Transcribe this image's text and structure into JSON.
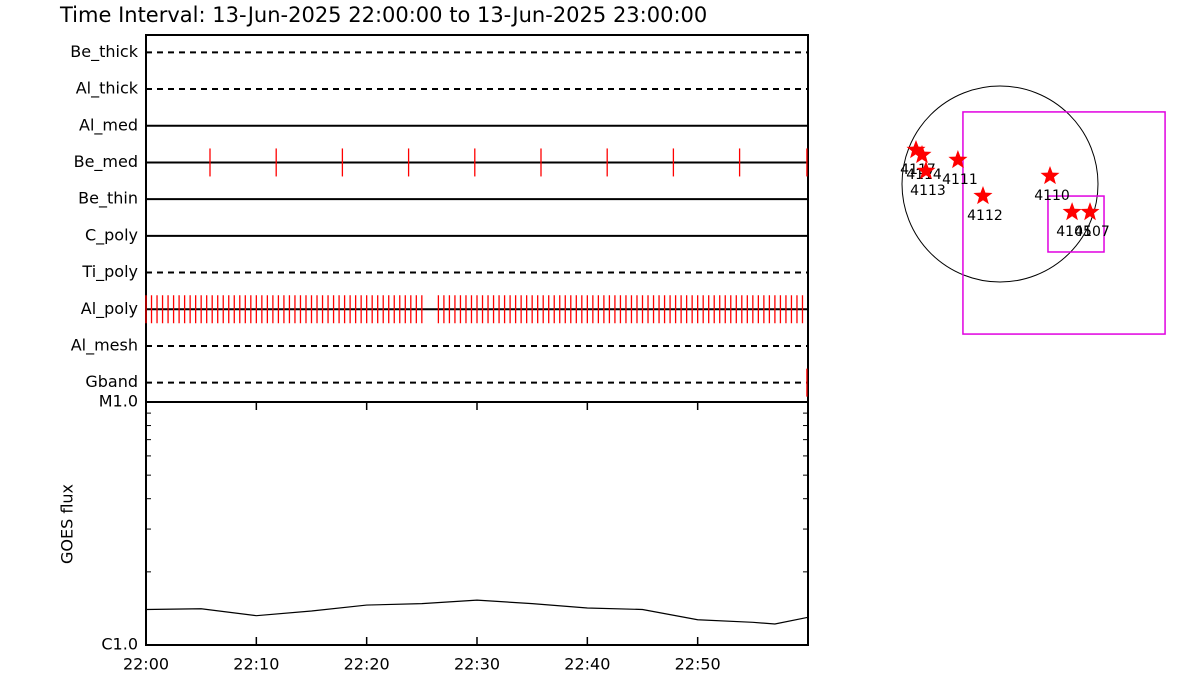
{
  "chart_data": {
    "type": "timeline",
    "title": "Time Interval: 13-Jun-2025 22:00:00 to 13-Jun-2025 23:00:00",
    "xlim": [
      0,
      60
    ],
    "xticks": [
      {
        "value": 0,
        "label": "22:00"
      },
      {
        "value": 10,
        "label": "22:10"
      },
      {
        "value": 20,
        "label": "22:20"
      },
      {
        "value": 30,
        "label": "22:30"
      },
      {
        "value": 40,
        "label": "22:40"
      },
      {
        "value": 50,
        "label": "22:50"
      }
    ],
    "mark_color": "#ff0000",
    "rows": [
      {
        "name": "Be_thick",
        "line": "dashed",
        "times": []
      },
      {
        "name": "Al_thick",
        "line": "dashed",
        "times": []
      },
      {
        "name": "Al_med",
        "line": "solid",
        "times": []
      },
      {
        "name": "Be_med",
        "line": "solid",
        "times": [
          5.8,
          11.8,
          17.8,
          23.8,
          29.8,
          35.8,
          41.8,
          47.8,
          53.8,
          59.9
        ]
      },
      {
        "name": "Be_thin",
        "line": "solid",
        "times": []
      },
      {
        "name": "C_poly",
        "line": "solid",
        "times": []
      },
      {
        "name": "Ti_poly",
        "line": "dashed",
        "times": []
      },
      {
        "name": "Al_poly",
        "line": "solid",
        "times": [
          0,
          0.5,
          1,
          1.5,
          2,
          2.5,
          3,
          3.5,
          4,
          4.5,
          5,
          5.5,
          6,
          6.5,
          7,
          7.5,
          8,
          8.5,
          9,
          9.5,
          10,
          10.5,
          11,
          11.5,
          12,
          12.5,
          13,
          13.5,
          14,
          14.5,
          15,
          15.5,
          16,
          16.5,
          17,
          17.5,
          18,
          18.5,
          19,
          19.5,
          20,
          20.5,
          21,
          21.5,
          22,
          22.5,
          23,
          23.5,
          24,
          24.5,
          25,
          26.5,
          27,
          27.5,
          28,
          28.5,
          29,
          29.5,
          30,
          30.5,
          31,
          31.5,
          32,
          32.5,
          33,
          33.5,
          34,
          34.5,
          35,
          35.5,
          36,
          36.5,
          37,
          37.5,
          38,
          38.5,
          39,
          39.5,
          40,
          40.5,
          41,
          41.5,
          42,
          42.5,
          43,
          43.5,
          44,
          44.5,
          45,
          45.5,
          46,
          46.5,
          47,
          47.5,
          48,
          48.5,
          49,
          49.5,
          50,
          50.5,
          51,
          51.5,
          52,
          52.5,
          53,
          53.5,
          54,
          54.5,
          55,
          55.5,
          56,
          56.5,
          57,
          57.5,
          58,
          58.5,
          59,
          59.5
        ]
      },
      {
        "name": "Al_mesh",
        "line": "dashed",
        "times": []
      },
      {
        "name": "Gband",
        "line": "dashed",
        "times": [
          59.9
        ]
      }
    ],
    "goes": {
      "ylabel": "GOES flux",
      "log": true,
      "ylim": [
        1e-06,
        1e-05
      ],
      "yticks": [
        {
          "value": 1e-06,
          "label": "C1.0"
        },
        {
          "value": 1e-05,
          "label": "M1.0"
        }
      ],
      "yminor": [
        2e-06,
        3e-06,
        4e-06,
        5e-06,
        6e-06,
        7e-06,
        8e-06,
        9e-06
      ],
      "x": [
        0,
        5,
        10,
        15,
        20,
        25,
        30,
        35,
        40,
        45,
        50,
        55,
        57,
        60
      ],
      "values": [
        1.4e-06,
        1.41e-06,
        1.32e-06,
        1.38e-06,
        1.46e-06,
        1.48e-06,
        1.53e-06,
        1.48e-06,
        1.42e-06,
        1.4e-06,
        1.27e-06,
        1.24e-06,
        1.22e-06,
        1.3e-06
      ]
    },
    "sun": {
      "radius": 960,
      "fov": {
        "x": [
          -363,
          1617
        ],
        "y": [
          -1470,
          706
        ]
      },
      "subfov": {
        "x": [
          470,
          1019
        ],
        "y": [
          -666,
          -118
        ]
      },
      "box_color": "#e000e0",
      "regions": [
        {
          "label": "4117",
          "x": -823,
          "y": 333
        },
        {
          "label": "4114",
          "x": -764,
          "y": 284
        },
        {
          "label": "4113",
          "x": -725,
          "y": 127
        },
        {
          "label": "4111",
          "x": -412,
          "y": 235
        },
        {
          "label": "4112",
          "x": -167,
          "y": -118
        },
        {
          "label": "4110",
          "x": 490,
          "y": 78
        },
        {
          "label": "4105",
          "x": 706,
          "y": -275
        },
        {
          "label": "4107",
          "x": 882,
          "y": -275
        }
      ]
    }
  }
}
